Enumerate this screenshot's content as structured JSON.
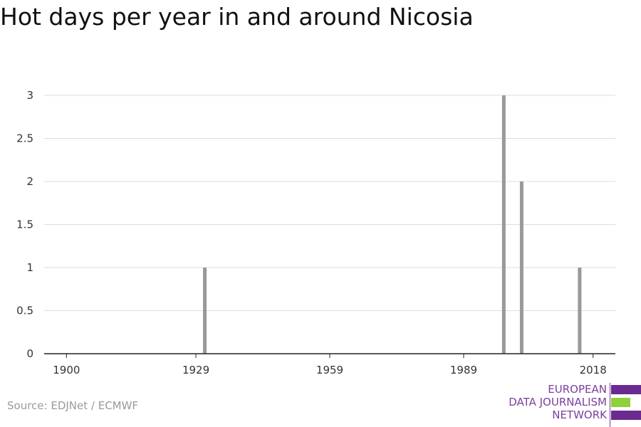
{
  "chart_data": {
    "type": "bar",
    "title": "Hot days per year in and around Nicosia",
    "xlabel": "",
    "ylabel": "",
    "x_range": [
      1895,
      2023
    ],
    "ylim": [
      0,
      3
    ],
    "x_ticks": [
      1900,
      1929,
      1959,
      1989,
      2018
    ],
    "y_ticks": [
      0,
      0.5,
      1,
      1.5,
      2,
      2.5,
      3
    ],
    "y_tick_labels": [
      "0",
      "0.5",
      "1",
      "1.5",
      "2",
      "2.5",
      "3"
    ],
    "x": [
      1931,
      1998,
      2002,
      2015
    ],
    "values": [
      1,
      3,
      2,
      1
    ],
    "bar_color": "#999999",
    "grid": true
  },
  "source": "Source: EDJNet / ECMWF",
  "logo": {
    "lines": [
      "EUROPEAN",
      "DATA JOURNALISM",
      "NETWORK"
    ],
    "colors": {
      "purple": "#6a2a8f",
      "green": "#8fd13a",
      "text": "#7b3f9e"
    }
  }
}
